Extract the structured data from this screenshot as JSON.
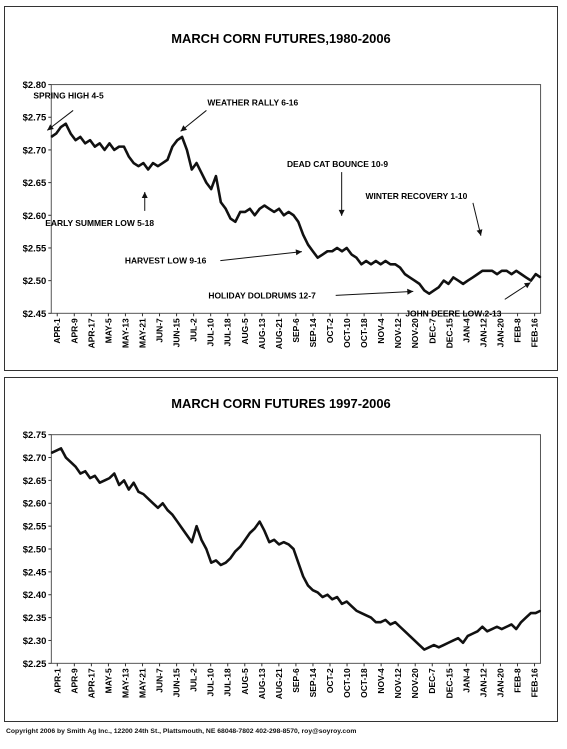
{
  "charts": [
    {
      "type": "line",
      "title": "MARCH CORN FUTURES,1980-2006",
      "ylim": [
        2.45,
        2.8
      ],
      "y_ticks": [
        "$2.45",
        "$2.50",
        "$2.55",
        "$2.60",
        "$2.65",
        "$2.70",
        "$2.75",
        "$2.80"
      ],
      "categories": [
        "APR-1",
        "APR-9",
        "APR-17",
        "MAY-5",
        "MAY-13",
        "MAY-21",
        "JUN-7",
        "JUN-15",
        "JUL-2",
        "JUL-10",
        "JUL-18",
        "AUG-5",
        "AUG-13",
        "AUG-21",
        "SEP-6",
        "SEP-14",
        "OCT-2",
        "OCT-10",
        "OCT-18",
        "NOV-4",
        "NOV-12",
        "NOV-20",
        "DEC-7",
        "DEC-15",
        "JAN-4",
        "JAN-12",
        "JAN-20",
        "FEB-8",
        "FEB-16"
      ],
      "grid": false,
      "line_color": "#111111",
      "series": [
        {
          "values": [
            2.72,
            2.725,
            2.735,
            2.74,
            2.725,
            2.715,
            2.72,
            2.71,
            2.715,
            2.705,
            2.71,
            2.7,
            2.71,
            2.7,
            2.705,
            2.705,
            2.69,
            2.68,
            2.675,
            2.68,
            2.67,
            2.68,
            2.675,
            2.68,
            2.685,
            2.705,
            2.715,
            2.72,
            2.7,
            2.67,
            2.68,
            2.665,
            2.65,
            2.64,
            2.66,
            2.62,
            2.61,
            2.595,
            2.59,
            2.605,
            2.605,
            2.61,
            2.6,
            2.61,
            2.615,
            2.61,
            2.605,
            2.61,
            2.6,
            2.605,
            2.6,
            2.59,
            2.57,
            2.555,
            2.545,
            2.535,
            2.54,
            2.545,
            2.545,
            2.55,
            2.545,
            2.55,
            2.54,
            2.535,
            2.525,
            2.53,
            2.525,
            2.53,
            2.525,
            2.53,
            2.525,
            2.525,
            2.52,
            2.51,
            2.505,
            2.5,
            2.495,
            2.485,
            2.48,
            2.485,
            2.49,
            2.5,
            2.495,
            2.505,
            2.5,
            2.495,
            2.5,
            2.505,
            2.51,
            2.515,
            2.515,
            2.515,
            2.51,
            2.515,
            2.515,
            2.51,
            2.515,
            2.51,
            2.505,
            2.5,
            2.51,
            2.505
          ]
        }
      ],
      "annotations": [
        {
          "text": "SPRING HIGH 4-5",
          "index": 4
        },
        {
          "text": "WEATHER RALLY 6-16",
          "index": 28
        },
        {
          "text": "EARLY SUMMER LOW 5-18",
          "index": 19
        },
        {
          "text": "DEAD CAT BOUNCE 10-9",
          "index": 60
        },
        {
          "text": "WINTER RECOVERY 1-10",
          "index": 86
        },
        {
          "text": "HARVEST LOW 9-16",
          "index": 55
        },
        {
          "text": "HOLIDAY DOLDRUMS 12-7",
          "index": 78
        },
        {
          "text": "JOHN DEERE LOW 2-13",
          "index": 99
        }
      ]
    },
    {
      "type": "line",
      "title": "MARCH CORN FUTURES 1997-2006",
      "ylim": [
        2.25,
        2.75
      ],
      "y_ticks": [
        "$2.25",
        "$2.30",
        "$2.35",
        "$2.40",
        "$2.45",
        "$2.50",
        "$2.55",
        "$2.60",
        "$2.65",
        "$2.70",
        "$2.75"
      ],
      "categories": [
        "APR-1",
        "APR-9",
        "APR-17",
        "MAY-5",
        "MAY-13",
        "MAY-21",
        "JUN-7",
        "JUN-15",
        "JUL-2",
        "JUL-10",
        "JUL-18",
        "AUG-5",
        "AUG-13",
        "AUG-21",
        "SEP-6",
        "SEP-14",
        "OCT-2",
        "OCT-10",
        "OCT-18",
        "NOV-4",
        "NOV-12",
        "NOV-20",
        "DEC-7",
        "DEC-15",
        "JAN-4",
        "JAN-12",
        "JAN-20",
        "FEB-8",
        "FEB-16"
      ],
      "grid": false,
      "line_color": "#111111",
      "series": [
        {
          "values": [
            2.71,
            2.715,
            2.72,
            2.7,
            2.69,
            2.68,
            2.665,
            2.67,
            2.655,
            2.66,
            2.645,
            2.65,
            2.655,
            2.665,
            2.64,
            2.65,
            2.63,
            2.645,
            2.625,
            2.62,
            2.61,
            2.6,
            2.59,
            2.6,
            2.585,
            2.575,
            2.56,
            2.545,
            2.53,
            2.515,
            2.55,
            2.52,
            2.5,
            2.47,
            2.475,
            2.465,
            2.47,
            2.48,
            2.495,
            2.505,
            2.52,
            2.535,
            2.545,
            2.56,
            2.54,
            2.515,
            2.52,
            2.51,
            2.515,
            2.51,
            2.5,
            2.47,
            2.44,
            2.42,
            2.41,
            2.405,
            2.395,
            2.4,
            2.39,
            2.395,
            2.38,
            2.385,
            2.375,
            2.365,
            2.36,
            2.355,
            2.35,
            2.34,
            2.34,
            2.345,
            2.335,
            2.34,
            2.33,
            2.32,
            2.31,
            2.3,
            2.29,
            2.28,
            2.285,
            2.29,
            2.285,
            2.29,
            2.295,
            2.3,
            2.305,
            2.295,
            2.31,
            2.315,
            2.32,
            2.33,
            2.32,
            2.325,
            2.33,
            2.325,
            2.33,
            2.335,
            2.325,
            2.34,
            2.35,
            2.36,
            2.36,
            2.365
          ]
        }
      ],
      "annotations": []
    }
  ],
  "footer": "Copyright 2006 by Smith Ag Inc., 12200 24th St., Plattsmouth, NE 68048-7802 402-298-8570, roy@soyroy.com"
}
